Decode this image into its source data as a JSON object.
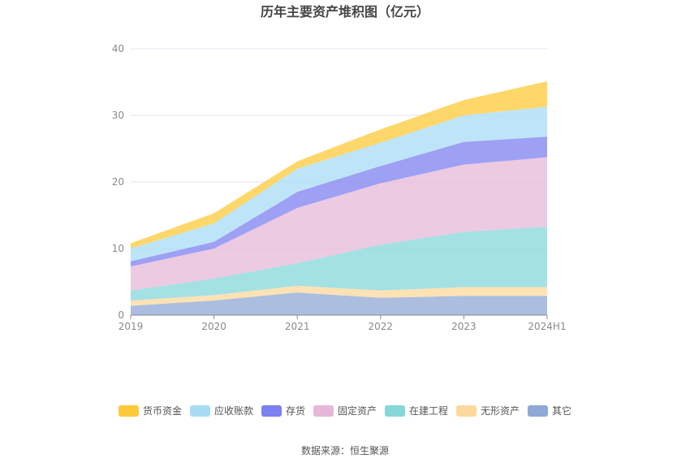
{
  "chart_data": {
    "type": "area",
    "stacked": true,
    "title": "历年主要资产堆积图（亿元）",
    "categories": [
      "2019",
      "2020",
      "2021",
      "2022",
      "2023",
      "2024H1"
    ],
    "ylim": [
      0,
      40
    ],
    "yticks": [
      0,
      10,
      20,
      30,
      40
    ],
    "grid": true,
    "legend_position": "bottom",
    "series": [
      {
        "name": "其它",
        "color": "#8fa8d6",
        "values": [
          1.4,
          2.2,
          3.4,
          2.6,
          2.9,
          2.9
        ]
      },
      {
        "name": "无形资产",
        "color": "#fcd89b",
        "values": [
          0.8,
          0.8,
          1.0,
          1.1,
          1.3,
          1.3
        ]
      },
      {
        "name": "在建工程",
        "color": "#86d7d8",
        "values": [
          1.5,
          2.5,
          3.4,
          6.9,
          8.3,
          9.1
        ]
      },
      {
        "name": "固定资产",
        "color": "#e6b8d8",
        "values": [
          3.6,
          4.5,
          8.3,
          9.2,
          10.1,
          10.4
        ]
      },
      {
        "name": "存货",
        "color": "#7d80f0",
        "values": [
          0.8,
          1.0,
          2.4,
          2.6,
          3.4,
          3.1
        ]
      },
      {
        "name": "应收账款",
        "color": "#a8dcf4",
        "values": [
          1.9,
          2.8,
          3.5,
          3.5,
          4.0,
          4.5
        ]
      },
      {
        "name": "货币资金",
        "color": "#fdc93a",
        "values": [
          0.8,
          1.5,
          1.1,
          2.0,
          2.3,
          3.8
        ]
      }
    ],
    "legend_order": [
      "货币资金",
      "应收账款",
      "存货",
      "固定资产",
      "在建工程",
      "无形资产",
      "其它"
    ]
  },
  "source": "数据来源：恒生聚源"
}
